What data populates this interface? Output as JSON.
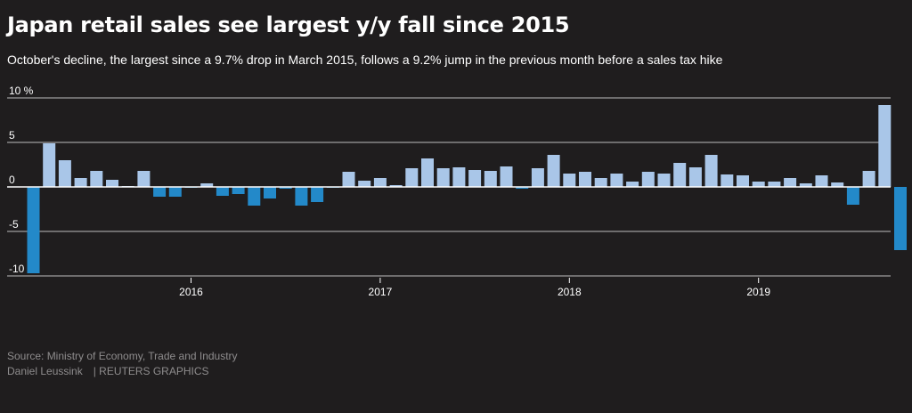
{
  "header": {
    "title": "Japan retail sales see largest y/y fall since 2015",
    "subtitle": "October's decline, the largest since a 9.7% drop in March 2015, follows a 9.2% jump in the previous month before a sales tax hike"
  },
  "footer": {
    "source": "Source: Ministry of Economy, Trade and Industry",
    "author": "Daniel Leussink",
    "agency": "| REUTERS GRAPHICS"
  },
  "colors": {
    "background": "#1f1d1e",
    "positive_bar": "#a9c6e8",
    "negative_bar": "#2389c9",
    "grid": "#bdbdbd",
    "zero_line": "#ffffff"
  },
  "chart_data": {
    "type": "bar",
    "title": "Japan retail sales see largest y/y fall since 2015",
    "subtitle": "October's decline, the largest since a 9.7% drop in March 2015, follows a 9.2% jump in the previous month before a sales tax hike",
    "xlabel": "",
    "ylabel": "",
    "ylim": [
      -10,
      10
    ],
    "y_ticks": [
      {
        "value": 10,
        "label": "10 %"
      },
      {
        "value": 5,
        "label": "5"
      },
      {
        "value": 0,
        "label": "0"
      },
      {
        "value": -5,
        "label": "-5"
      },
      {
        "value": -10,
        "label": "-10"
      }
    ],
    "x_ticks": [
      {
        "month": "2016-01",
        "label": "2016"
      },
      {
        "month": "2017-01",
        "label": "2017"
      },
      {
        "month": "2018-01",
        "label": "2018"
      },
      {
        "month": "2019-01",
        "label": "2019"
      }
    ],
    "grid": true,
    "categories": [
      "2015-03",
      "2015-04",
      "2015-05",
      "2015-06",
      "2015-07",
      "2015-08",
      "2015-09",
      "2015-10",
      "2015-11",
      "2015-12",
      "2016-01",
      "2016-02",
      "2016-03",
      "2016-04",
      "2016-05",
      "2016-06",
      "2016-07",
      "2016-08",
      "2016-09",
      "2016-10",
      "2016-11",
      "2016-12",
      "2017-01",
      "2017-02",
      "2017-03",
      "2017-04",
      "2017-05",
      "2017-06",
      "2017-07",
      "2017-08",
      "2017-09",
      "2017-10",
      "2017-11",
      "2017-12",
      "2018-01",
      "2018-02",
      "2018-03",
      "2018-04",
      "2018-05",
      "2018-06",
      "2018-07",
      "2018-08",
      "2018-09",
      "2018-10",
      "2018-11",
      "2018-12",
      "2019-01",
      "2019-02",
      "2019-03",
      "2019-04",
      "2019-05",
      "2019-06",
      "2019-07",
      "2019-08",
      "2019-09",
      "2019-10"
    ],
    "values": [
      -9.7,
      4.9,
      3.0,
      1.0,
      1.8,
      0.8,
      0.1,
      1.8,
      -1.1,
      -1.1,
      -0.1,
      0.4,
      -1.0,
      -0.8,
      -2.1,
      -1.3,
      -0.2,
      -2.1,
      -1.7,
      -0.1,
      1.7,
      0.7,
      1.0,
      0.2,
      2.1,
      3.2,
      2.1,
      2.2,
      1.9,
      1.8,
      2.3,
      -0.2,
      2.1,
      3.6,
      1.5,
      1.7,
      1.0,
      1.5,
      0.6,
      1.7,
      1.5,
      2.7,
      2.2,
      3.6,
      1.4,
      1.3,
      0.6,
      0.6,
      1.0,
      0.4,
      1.3,
      0.5,
      -2.0,
      1.8,
      9.2,
      -7.1
    ]
  }
}
